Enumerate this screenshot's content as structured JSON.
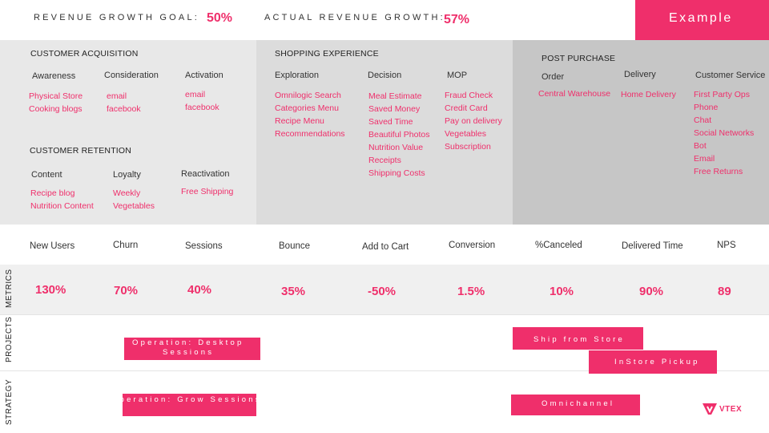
{
  "header": {
    "revenue_goal_label": "REVENUE GROWTH GOAL:",
    "revenue_goal_value": "50%",
    "actual_growth_label": "ACTUAL REVENUE GROWTH:",
    "actual_growth_value": "57%",
    "example_label": "Example"
  },
  "acquisition": {
    "title": "CUSTOMER ACQUISITION",
    "columns": [
      {
        "head": "Awareness",
        "items": [
          "Physical Store",
          "Cooking blogs"
        ]
      },
      {
        "head": "Consideration",
        "items": [
          "email",
          "facebook"
        ]
      },
      {
        "head": "Activation",
        "items": [
          "email",
          "facebook"
        ]
      }
    ]
  },
  "shopping": {
    "title": "SHOPPING EXPERIENCE",
    "columns": [
      {
        "head": "Exploration",
        "items": [
          "Omnilogic Search",
          "Categories Menu",
          "Recipe Menu",
          "Recommendations"
        ]
      },
      {
        "head": "Decision",
        "items": [
          "Meal Estimate",
          "Saved Money",
          "Saved Time",
          "Beautiful Photos",
          "Nutrition Value",
          "Receipts",
          "Shipping Costs"
        ]
      },
      {
        "head": "MOP",
        "items": [
          "Fraud Check",
          "Credit Card",
          "Pay on delivery",
          "Vegetables",
          "Subscription"
        ]
      }
    ]
  },
  "post_purchase": {
    "title": "POST PURCHASE",
    "columns": [
      {
        "head": "Order",
        "items": [
          "Central Warehouse"
        ]
      },
      {
        "head": "Delivery",
        "items": [
          "Home Delivery"
        ]
      },
      {
        "head": "Customer Service",
        "items": [
          "First Party Ops",
          "Phone",
          "Chat",
          "Social Networks",
          "Bot",
          "Email",
          "Free Returns"
        ]
      }
    ]
  },
  "retention": {
    "title": "CUSTOMER RETENTION",
    "columns": [
      {
        "head": "Content",
        "items": [
          "Recipe blog",
          "Nutrition Content"
        ]
      },
      {
        "head": "Loyalty",
        "items": [
          "Weekly",
          "Vegetables"
        ]
      },
      {
        "head": "Reactivation",
        "items": [
          "Free Shipping"
        ]
      }
    ]
  },
  "metrics": {
    "side_label": "METRICS",
    "items": [
      {
        "label": "New Users",
        "value": "130%"
      },
      {
        "label": "Churn",
        "value": "70%"
      },
      {
        "label": "Sessions",
        "value": "40%"
      },
      {
        "label": "Bounce",
        "value": "35%"
      },
      {
        "label": "Add to Cart",
        "value": "-50%"
      },
      {
        "label": "Conversion",
        "value": "1.5%"
      },
      {
        "label": "%Canceled",
        "value": "10%"
      },
      {
        "label": "Delivered Time",
        "value": "90%"
      },
      {
        "label": "NPS",
        "value": "89"
      }
    ]
  },
  "projects": {
    "side_label": "PROJECTS",
    "bars": [
      {
        "line1": "Operation: Desktop",
        "line2": "Sessions"
      },
      {
        "line1": "Ship from Store",
        "line2": ""
      },
      {
        "line1": "InStore Pickup",
        "line2": ""
      }
    ]
  },
  "strategy": {
    "side_label": "STRATEGY",
    "bars": [
      {
        "text": "Operation: Grow Sessions"
      },
      {
        "text": "Omnichannel"
      }
    ]
  },
  "brand": {
    "logo_text": "VTEX",
    "color": "#ef2f6b"
  }
}
